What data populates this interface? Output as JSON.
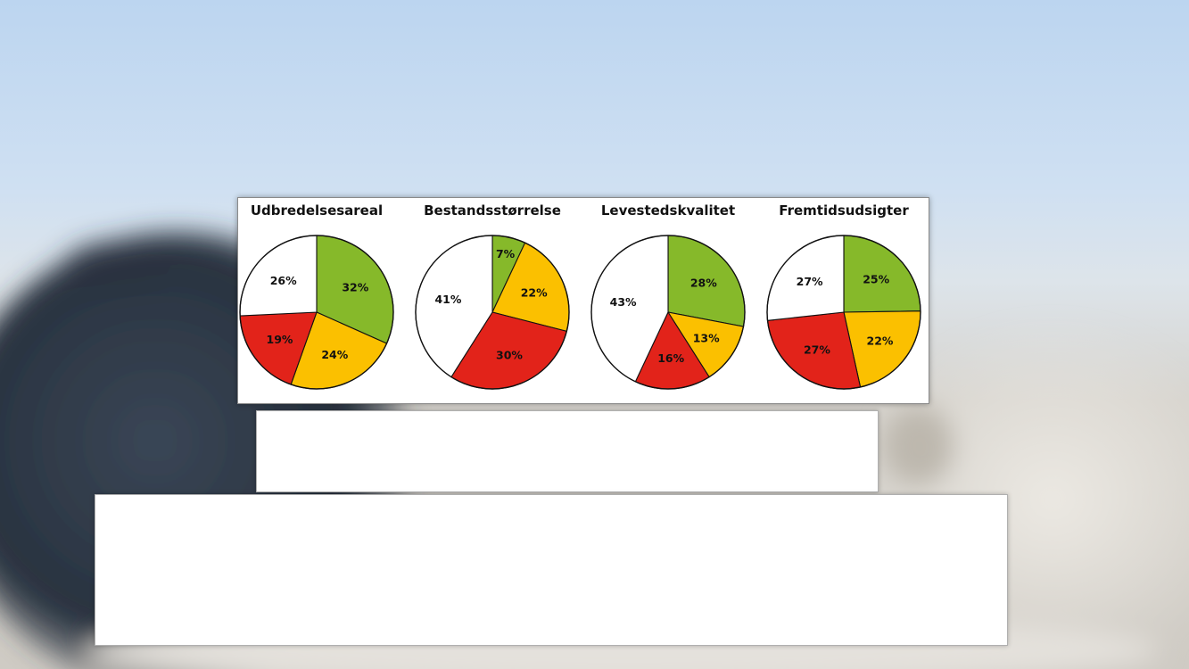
{
  "colors": {
    "green": "#86b92a",
    "yellow": "#fbc000",
    "red": "#e2231a",
    "white": "#ffffff",
    "sky_top": "#c6dcf3",
    "sky_bottom": "#dfe8f0",
    "sand": "#d9d5ce",
    "seal": "#2f3a48"
  },
  "chart_data": [
    {
      "type": "pie",
      "title": "Udbredelsesareal",
      "slices": [
        {
          "color": "green",
          "value": 32,
          "label": "32%"
        },
        {
          "color": "yellow",
          "value": 24,
          "label": "24%"
        },
        {
          "color": "red",
          "value": 19,
          "label": "19%"
        },
        {
          "color": "white",
          "value": 26,
          "label": "26%"
        }
      ]
    },
    {
      "type": "pie",
      "title": "Bestandsstørrelse",
      "slices": [
        {
          "color": "green",
          "value": 7,
          "label": "7%"
        },
        {
          "color": "yellow",
          "value": 22,
          "label": "22%"
        },
        {
          "color": "red",
          "value": 30,
          "label": "30%"
        },
        {
          "color": "white",
          "value": 41,
          "label": "41%"
        }
      ]
    },
    {
      "type": "pie",
      "title": "Levestedskvalitet",
      "slices": [
        {
          "color": "green",
          "value": 28,
          "label": "28%"
        },
        {
          "color": "yellow",
          "value": 13,
          "label": "13%"
        },
        {
          "color": "red",
          "value": 16,
          "label": "16%"
        },
        {
          "color": "white",
          "value": 43,
          "label": "43%"
        }
      ]
    },
    {
      "type": "pie",
      "title": "Fremtidsudsigter",
      "slices": [
        {
          "color": "green",
          "value": 25,
          "label": "25%"
        },
        {
          "color": "yellow",
          "value": 22,
          "label": "22%"
        },
        {
          "color": "red",
          "value": 27,
          "label": "27%"
        },
        {
          "color": "white",
          "value": 27,
          "label": "27%"
        }
      ]
    }
  ]
}
